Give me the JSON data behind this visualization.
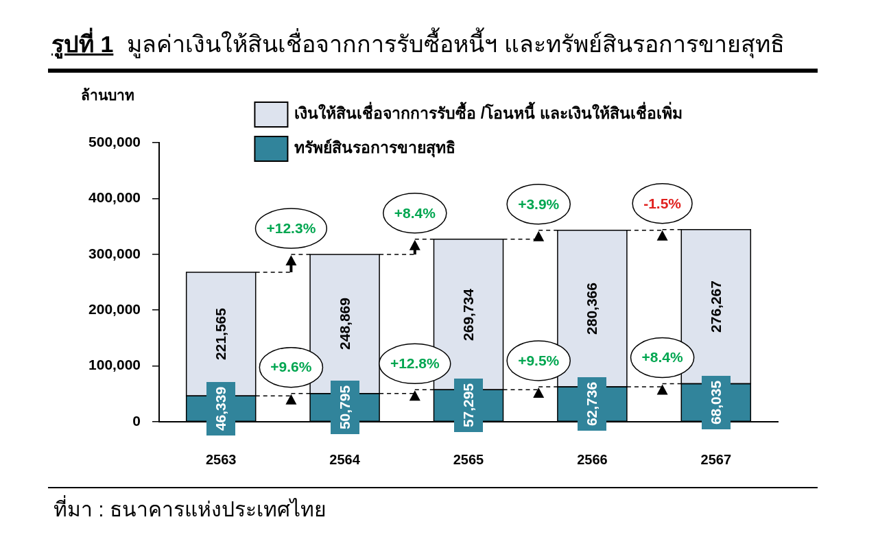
{
  "chart_data": {
    "type": "bar",
    "title": "รูปที่ 1",
    "subtitle": "มูลค่าเงินให้สินเชื่อจากการรับซื้อหนี้ฯ และทรัพย์สินรอการขายสุทธิ",
    "ylabel": "ล้านบาท",
    "categories": [
      "2563",
      "2564",
      "2565",
      "2566",
      "2567"
    ],
    "series": [
      {
        "name": "ทรัพย์สินรอการขายสุทธิ",
        "color": "#31849b",
        "values": [
          46339,
          50795,
          57295,
          62736,
          68035
        ],
        "value_labels": [
          "46,339",
          "50,795",
          "57,295",
          "62,736",
          "68,035"
        ]
      },
      {
        "name": "เงินให้สินเชื่อจากการรับซื้อ /โอนหนี้ และเงินให้สินเชื่อเพิ่ม",
        "color": "#dde3ee",
        "values": [
          221565,
          248869,
          269734,
          280366,
          276267
        ],
        "value_labels": [
          "221,565",
          "248,869",
          "269,734",
          "280,366",
          "276,267"
        ]
      }
    ],
    "stacked": true,
    "ylim": [
      0,
      500000
    ],
    "yticks": [
      0,
      {
        "value": 100000,
        "label": "100,000"
      },
      {
        "value": 200000,
        "label": "200,000"
      },
      {
        "value": 300000,
        "label": "300,000"
      },
      {
        "value": 400000,
        "label": "400,000"
      },
      {
        "value": 500000,
        "label": "500,000"
      }
    ],
    "legend": "top",
    "annotations": [
      {
        "text": "+12.3%",
        "x": "2564",
        "y": 299664
      },
      {
        "text": "+8.4%",
        "x": "2565",
        "y": 327029
      },
      {
        "text": "+3.9%",
        "x": "2566",
        "y": 343102
      },
      {
        "text": "-1.5%",
        "x": "2567",
        "y": 344302
      },
      {
        "text": "+9.6%",
        "x": "2564",
        "y": 50795
      },
      {
        "text": "+12.8%",
        "x": "2565",
        "y": 57295
      },
      {
        "text": "+9.5%",
        "x": "2566",
        "y": 62736
      },
      {
        "text": "+8.4%",
        "x": "2567",
        "y": 68035
      },
      "ที่มา : ธนาคารแห่งประเทศไทย"
    ]
  }
}
